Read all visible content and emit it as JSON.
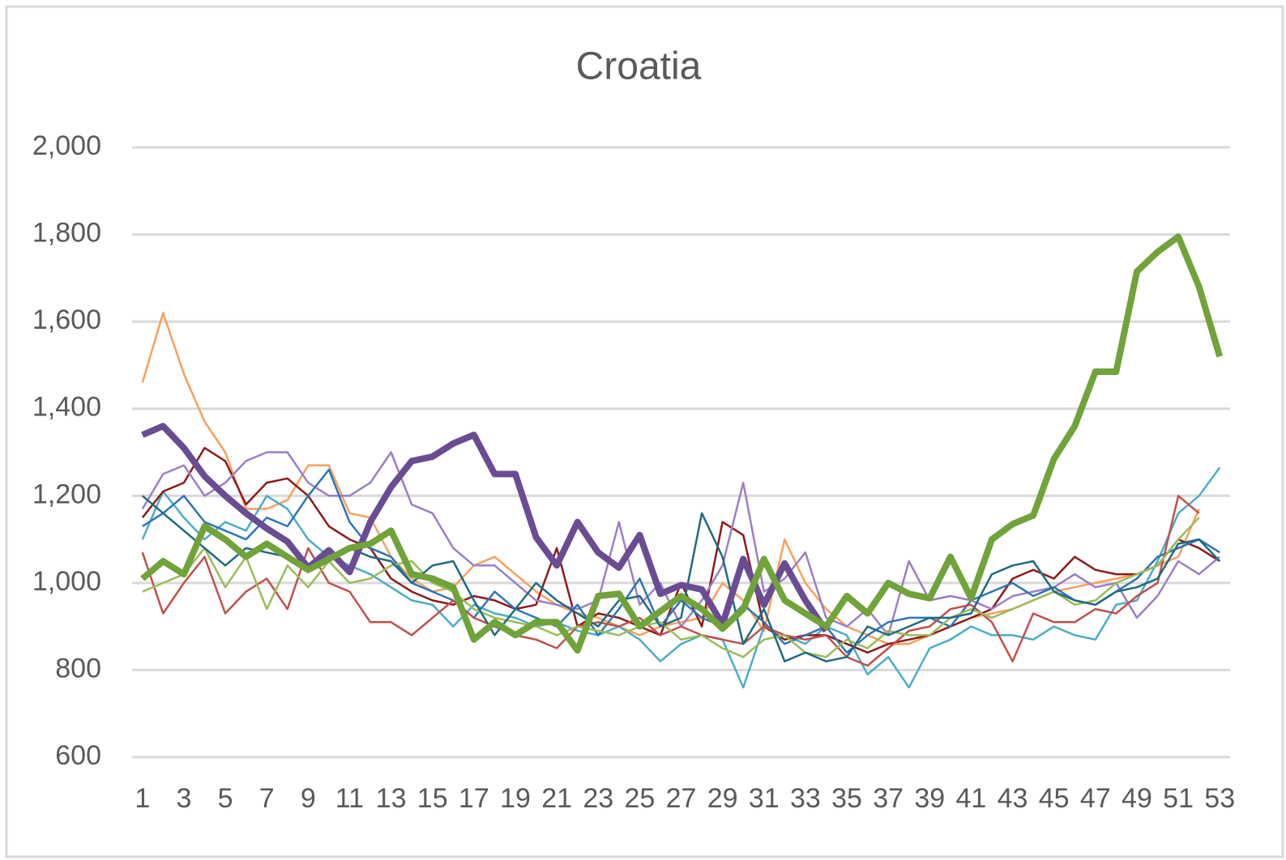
{
  "chart_data": {
    "type": "line",
    "title": "Croatia",
    "categories": [
      1,
      null,
      3,
      null,
      5,
      null,
      7,
      null,
      9,
      null,
      11,
      null,
      13,
      null,
      15,
      null,
      17,
      null,
      19,
      null,
      21,
      null,
      23,
      null,
      25,
      null,
      27,
      null,
      29,
      null,
      31,
      null,
      33,
      null,
      35,
      null,
      37,
      null,
      39,
      null,
      41,
      null,
      43,
      null,
      45,
      null,
      47,
      null,
      49,
      null,
      51,
      null,
      53
    ],
    "ylim": [
      600,
      2000
    ],
    "yticks": [
      600,
      800,
      {
        "value": 1000,
        "label": "1,000"
      },
      {
        "value": 1200,
        "label": "1,200"
      },
      {
        "value": 1400,
        "label": "1,400"
      },
      {
        "value": 1600,
        "label": "1,600"
      },
      {
        "value": 1800,
        "label": "1,800"
      },
      {
        "value": 2000,
        "label": "2,000"
      }
    ],
    "grid": true,
    "series": [
      {
        "color": "#f8a05a",
        "line_width": 2.5,
        "values": [
          1460,
          1620,
          1480,
          1370,
          1300,
          1170,
          1170,
          1190,
          1270,
          1270,
          1160,
          1150,
          1060,
          1010,
          980,
          990,
          1040,
          1060,
          1020,
          980,
          950,
          930,
          920,
          900,
          880,
          900,
          910,
          920,
          1000,
          960,
          890,
          1100,
          1000,
          940,
          900,
          880,
          860,
          860,
          880,
          900,
          920,
          930,
          940,
          960,
          980,
          990,
          1000,
          1010,
          1020,
          1040,
          1060,
          1170,
          null
        ]
      },
      {
        "color": "#4bacc6",
        "line_width": 2.5,
        "values": [
          1100,
          1210,
          1150,
          1100,
          1140,
          1120,
          1200,
          1170,
          1100,
          1060,
          1040,
          1020,
          990,
          960,
          950,
          900,
          950,
          930,
          920,
          900,
          910,
          890,
          880,
          900,
          870,
          820,
          860,
          880,
          870,
          760,
          900,
          880,
          860,
          900,
          880,
          790,
          830,
          760,
          850,
          870,
          900,
          880,
          880,
          870,
          900,
          880,
          870,
          950,
          960,
          1050,
          1160,
          1200,
          1265
        ]
      },
      {
        "color": "#8b1a1a",
        "line_width": 2.5,
        "values": [
          1150,
          1210,
          1230,
          1310,
          1280,
          1180,
          1230,
          1240,
          1200,
          1130,
          1100,
          1080,
          1010,
          980,
          960,
          950,
          970,
          960,
          940,
          950,
          1080,
          900,
          930,
          920,
          900,
          880,
          1000,
          900,
          1140,
          1110,
          900,
          870,
          880,
          880,
          860,
          840,
          860,
          870,
          880,
          900,
          920,
          940,
          1010,
          1030,
          1010,
          1060,
          1030,
          1020,
          1020,
          1040,
          1100,
          1080,
          1050
        ]
      },
      {
        "color": "#9b7fc4",
        "line_width": 2.5,
        "values": [
          1170,
          1250,
          1270,
          1200,
          1230,
          1280,
          1300,
          1300,
          1230,
          1200,
          1200,
          1230,
          1300,
          1180,
          1160,
          1080,
          1040,
          1040,
          1000,
          960,
          950,
          940,
          960,
          1140,
          950,
          1000,
          900,
          960,
          1040,
          1230,
          980,
          1010,
          1070,
          920,
          900,
          940,
          880,
          1050,
          960,
          970,
          960,
          940,
          970,
          980,
          990,
          1020,
          990,
          1000,
          920,
          970,
          1050,
          1020,
          1060
        ]
      },
      {
        "color": "#2e75b6",
        "line_width": 2.5,
        "values": [
          1130,
          1160,
          1200,
          1140,
          1120,
          1100,
          1150,
          1130,
          1200,
          1260,
          1140,
          1080,
          1060,
          1000,
          980,
          960,
          920,
          980,
          940,
          920,
          900,
          950,
          880,
          940,
          1010,
          900,
          960,
          920,
          900,
          950,
          910,
          860,
          880,
          900,
          840,
          880,
          910,
          920,
          920,
          900,
          960,
          980,
          1000,
          970,
          990,
          960,
          950,
          980,
          1010,
          1060,
          1080,
          1100,
          1070
        ]
      },
      {
        "color": "#c0504d",
        "line_width": 2.5,
        "values": [
          1070,
          930,
          1000,
          1060,
          930,
          980,
          1010,
          940,
          1080,
          1000,
          980,
          910,
          910,
          880,
          920,
          960,
          920,
          900,
          880,
          870,
          850,
          900,
          910,
          900,
          920,
          880,
          900,
          880,
          870,
          860,
          900,
          880,
          870,
          880,
          830,
          810,
          850,
          890,
          900,
          940,
          950,
          910,
          820,
          930,
          910,
          910,
          940,
          930,
          970,
          1000,
          1200,
          1160,
          null
        ]
      },
      {
        "color": "#9bbb59",
        "line_width": 2.5,
        "values": [
          980,
          1000,
          1020,
          1080,
          990,
          1060,
          940,
          1040,
          990,
          1050,
          1000,
          1010,
          1040,
          1050,
          1000,
          980,
          940,
          920,
          910,
          900,
          880,
          900,
          890,
          880,
          900,
          910,
          870,
          880,
          850,
          830,
          870,
          880,
          840,
          830,
          870,
          850,
          890,
          880,
          880,
          920,
          940,
          920,
          940,
          960,
          980,
          950,
          960,
          1000,
          1020,
          1040,
          1100,
          1150,
          null
        ]
      },
      {
        "color": "#1f6b80",
        "line_width": 2.5,
        "values": [
          1200,
          1160,
          1120,
          1080,
          1040,
          1080,
          1070,
          1060,
          1040,
          1060,
          1080,
          1060,
          1050,
          1000,
          1040,
          1050,
          960,
          880,
          940,
          1000,
          960,
          930,
          900,
          960,
          970,
          900,
          920,
          1160,
          1060,
          860,
          940,
          820,
          840,
          820,
          830,
          900,
          880,
          900,
          920,
          920,
          930,
          1020,
          1040,
          1050,
          980,
          960,
          950,
          980,
          990,
          1010,
          1090,
          1100,
          1050
        ]
      },
      {
        "color": "#6a4c93",
        "line_width": 8,
        "values": [
          1340,
          1360,
          1310,
          1245,
          1200,
          1160,
          1125,
          1095,
          1035,
          1075,
          1025,
          1140,
          1220,
          1280,
          1290,
          1320,
          1340,
          1250,
          1250,
          1105,
          1040,
          1140,
          1070,
          1035,
          1110,
          975,
          995,
          985,
          905,
          1055,
          950,
          1045,
          960,
          890,
          null,
          null,
          null,
          null,
          null,
          null,
          null,
          null,
          null,
          null,
          null,
          null,
          null,
          null,
          null,
          null,
          null,
          null,
          null
        ]
      },
      {
        "color": "#70a33a",
        "line_width": 8,
        "values": [
          1010,
          1050,
          1020,
          1130,
          1100,
          1060,
          1090,
          1060,
          1030,
          1055,
          1080,
          1090,
          1120,
          1020,
          1010,
          990,
          870,
          910,
          880,
          910,
          910,
          845,
          970,
          975,
          900,
          935,
          970,
          940,
          895,
          940,
          1055,
          960,
          930,
          900,
          970,
          930,
          1000,
          975,
          965,
          1060,
          965,
          1100,
          1135,
          1155,
          1285,
          1360,
          1485,
          1485,
          1715,
          1760,
          1795,
          1680,
          1520
        ]
      }
    ]
  }
}
